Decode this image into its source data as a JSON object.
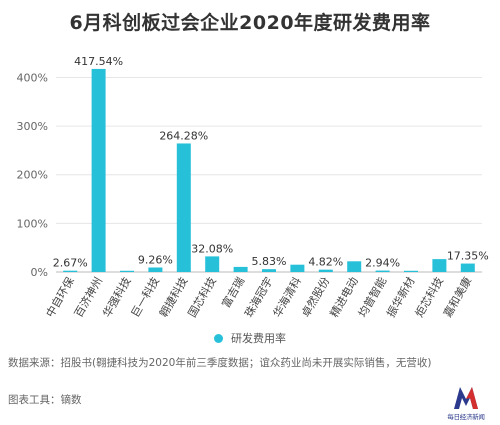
{
  "chart_data": {
    "type": "bar",
    "title": "6月科创板过会企业2020年度研发费用率",
    "categories": [
      "中自环保",
      "百济神州",
      "华强科技",
      "巨一科技",
      "翱捷科技",
      "国芯科技",
      "富吉瑞",
      "珠海冠宇",
      "华海清科",
      "卓然股份",
      "精进电动",
      "均普智能",
      "振华新材",
      "炬芯科技",
      "嘉和美康"
    ],
    "series": [
      {
        "name": "研发费用率",
        "values": [
          2.67,
          417.54,
          2.5,
          9.26,
          264.28,
          32.08,
          10.5,
          5.83,
          15.0,
          4.82,
          22.0,
          2.94,
          2.5,
          26.5,
          17.35
        ]
      }
    ],
    "data_labels": [
      "2.67%",
      "417.54%",
      "",
      "9.26%",
      "264.28%",
      "32.08%",
      "",
      "5.83%",
      "",
      "4.82%",
      "",
      "2.94%",
      "",
      "",
      "17.35%"
    ],
    "y_ticks": [
      "0%",
      "100%",
      "200%",
      "300%",
      "400%"
    ],
    "ylim": [
      0,
      440
    ],
    "grid": true,
    "legend_position": "bottom",
    "bar_color": "#26c0d9"
  },
  "source_text": "数据来源：招股书(翱捷科技为2020年前三季度数据；谊众药业尚未开展实际销售，无营收)",
  "tool_text": "图表工具：镝数",
  "logo_name": "newspaper-logo",
  "logo_text": "每日经济新闻"
}
